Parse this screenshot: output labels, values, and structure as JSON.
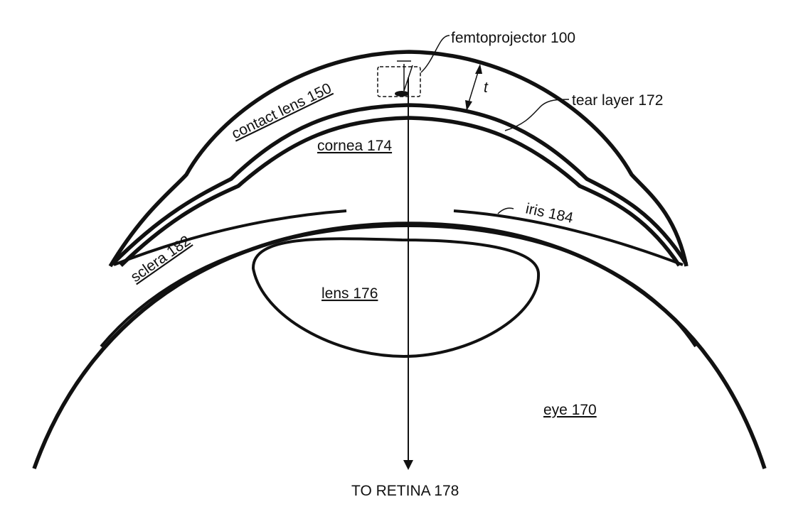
{
  "labels": {
    "femtoprojector": "femtoprojector 100",
    "contact_lens": "contact lens 150",
    "tear_layer": "tear layer 172",
    "thickness": "t",
    "cornea": "cornea 174",
    "iris": "iris 184",
    "sclera": "sclera 182",
    "lens": "lens 176",
    "eye": "eye 170",
    "retina": "TO RETINA 178"
  }
}
